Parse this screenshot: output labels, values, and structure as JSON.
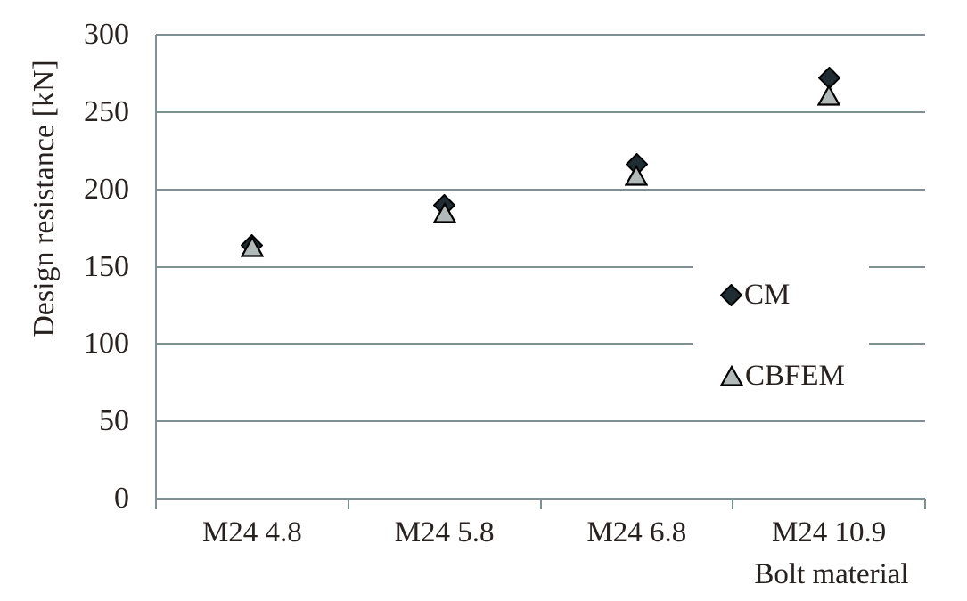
{
  "chart_data": {
    "type": "scatter",
    "title": "",
    "xlabel": "Bolt material",
    "ylabel": "Design resistance [kN]",
    "categories": [
      "M24 4.8",
      "M24 5.8",
      "M24 6.8",
      "M24 10.9"
    ],
    "series": [
      {
        "name": "CM",
        "marker": "diamond",
        "fill": "#1f2d33",
        "stroke": "#000000",
        "values": [
          164,
          190,
          216,
          272
        ]
      },
      {
        "name": "CBFEM",
        "marker": "triangle",
        "fill": "#b1bab8",
        "stroke": "#000000",
        "values": [
          163,
          185,
          209,
          261
        ]
      }
    ],
    "ylim": [
      0,
      300
    ],
    "yticks": [
      300,
      250,
      200,
      150,
      100,
      50,
      0
    ],
    "grid": true,
    "legend_position": "middle-right",
    "gridline_color": "#7e9091",
    "axis_color": "#7e9091",
    "text_color": "#27211f",
    "background_color": "#ffffff"
  }
}
